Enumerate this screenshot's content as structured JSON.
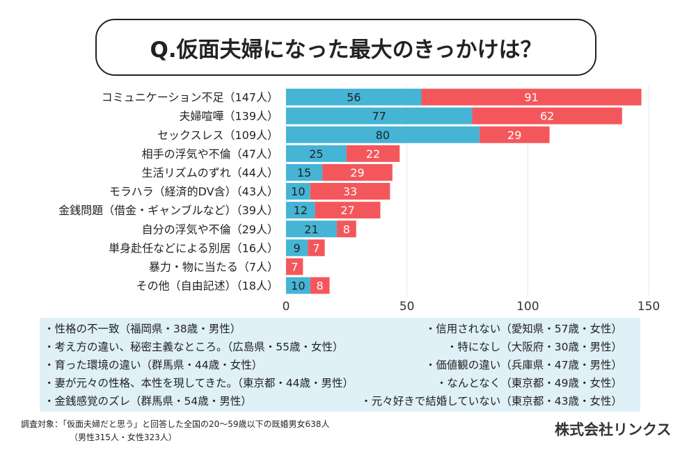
{
  "chart_data": {
    "type": "bar",
    "orientation": "horizontal",
    "stacked": true,
    "title": "Q.仮面夫婦になった最大のきっかけは？",
    "categories": [
      "コミュニケーション不足（147人）",
      "夫婦喧嘩（139人）",
      "セックスレス（109人）",
      "相手の浮気や不倫（47人）",
      "生活リズムのずれ（44人）",
      "モラハラ（経済的DV含）（43人）",
      "金銭問題（借金・ギャンブルなど）（39人）",
      "自分の浮気や不倫（29人）",
      "単身赴任などによる別居（16人）",
      "暴力・物に当たる（7人）",
      "その他（自由記述）（18人）"
    ],
    "series": [
      {
        "color": "#45b4d5",
        "values": [
          56,
          77,
          80,
          25,
          15,
          10,
          12,
          21,
          9,
          0,
          10
        ]
      },
      {
        "color": "#f4575b",
        "values": [
          91,
          62,
          29,
          22,
          29,
          33,
          27,
          8,
          7,
          7,
          8
        ]
      }
    ],
    "xlim": [
      0,
      150
    ],
    "xticks": [
      0,
      50,
      100,
      150
    ],
    "grid": true,
    "legend": "none"
  },
  "comments": [
    "・性格の不一致（福岡県・38歳・男性）",
    "・信用されない（愛知県・57歳・女性）",
    "・考え方の違い、秘密主義なところ。（広島県・55歳・女性）",
    "・特になし（大阪府・30歳・男性）",
    "・育った環境の違い（群馬県・44歳・女性）",
    "・価値観の違い（兵庫県・47歳・男性）",
    "・妻が元々の性格、本性を現してきた。（東京都・44歳・男性）",
    "・なんとなく（東京都・49歳・女性）",
    "・金銭感覚のズレ（群馬県・54歳・男性）",
    "・元々好きで結婚していない（東京都・43歳・女性）"
  ],
  "footer": {
    "survey_line1": "調査対象：「仮面夫婦だと思う」と回答した全国の20〜59歳以下の既婚男女638人",
    "survey_line2": "（男性315人・女性323人）",
    "company": "株式会社リンクス"
  }
}
